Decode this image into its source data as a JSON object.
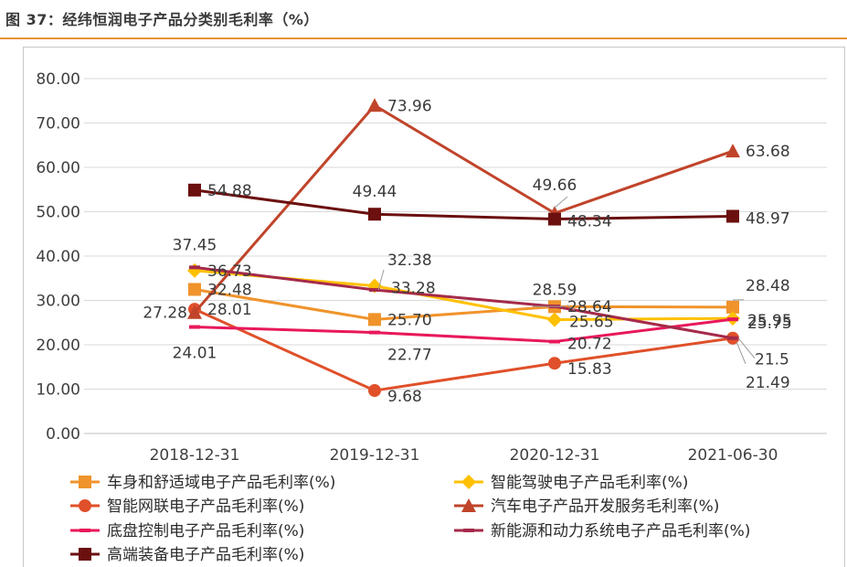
{
  "figure_title": "图 37：经纬恒润电子产品分类别毛利率（%）",
  "chart_data": {
    "type": "line",
    "categories": [
      "2018-12-31",
      "2019-12-31",
      "2020-12-31",
      "2021-06-30"
    ],
    "ylim": [
      0,
      80
    ],
    "yticks": [
      "0.00",
      "10.00",
      "20.00",
      "30.00",
      "40.00",
      "50.00",
      "60.00",
      "70.00",
      "80.00"
    ],
    "grid": true,
    "legend_position": "bottom",
    "series": [
      {
        "name": "车身和舒适域电子产品毛利率(%)",
        "values": [
          32.48,
          25.7,
          28.59,
          28.48
        ],
        "labels": [
          "32.48",
          "25.70",
          "28.59",
          "28.48"
        ],
        "color": "#f0932b",
        "marker": "square"
      },
      {
        "name": "智能驾驶电子产品毛利率(%)",
        "values": [
          36.73,
          33.28,
          25.65,
          25.95
        ],
        "labels": [
          "36.73",
          "33.28",
          "25.65",
          "25.95"
        ],
        "color": "#ffc000",
        "marker": "diamond"
      },
      {
        "name": "智能网联电子产品毛利率(%)",
        "values": [
          28.01,
          9.68,
          15.83,
          21.49
        ],
        "labels": [
          "28.01",
          "9.68",
          "15.83",
          "21.49"
        ],
        "color": "#e0502a",
        "marker": "circle"
      },
      {
        "name": "汽车电子产品开发服务毛利率(%)",
        "values": [
          27.28,
          73.96,
          49.66,
          63.68
        ],
        "labels": [
          "27.28",
          "73.96",
          "49.66",
          "63.68"
        ],
        "color": "#c0442a",
        "marker": "triangle"
      },
      {
        "name": "底盘控制电子产品毛利率(%)",
        "values": [
          24.01,
          22.77,
          20.72,
          25.75
        ],
        "labels": [
          "24.01",
          "22.77",
          "20.72",
          "25.75"
        ],
        "color": "#e8185a",
        "marker": "dash"
      },
      {
        "name": "新能源和动力系统电子产品毛利率(%)",
        "values": [
          37.45,
          32.38,
          28.64,
          21.5
        ],
        "labels": [
          "37.45",
          "32.38",
          "28.64",
          "21.5"
        ],
        "color": "#a52a4a",
        "marker": "dash"
      },
      {
        "name": "高端装备电子产品毛利率(%)",
        "values": [
          54.88,
          49.44,
          48.34,
          48.97
        ],
        "labels": [
          "54.88",
          "49.44",
          "48.34",
          "48.97"
        ],
        "color": "#6b0f0f",
        "marker": "square"
      }
    ]
  }
}
